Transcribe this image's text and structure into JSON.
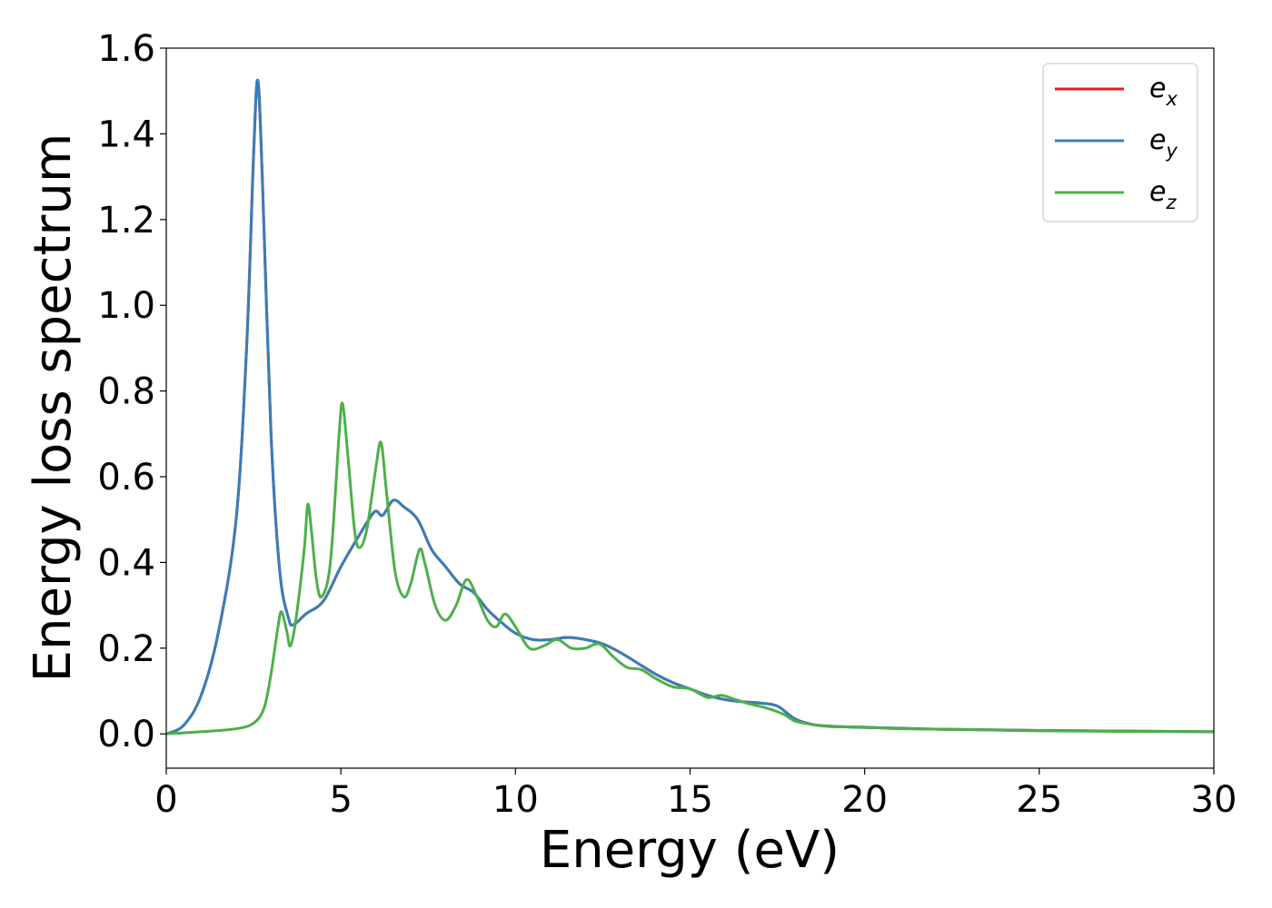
{
  "chart_data": {
    "type": "line",
    "title": "",
    "xlabel": "Energy (eV)",
    "ylabel": "Energy loss spectrum",
    "xlim": [
      0,
      30
    ],
    "ylim": [
      -0.08,
      1.6
    ],
    "x_ticks": [
      0,
      5,
      10,
      15,
      20,
      25,
      30
    ],
    "y_ticks": [
      0.0,
      0.2,
      0.4,
      0.6,
      0.8,
      1.0,
      1.2,
      1.4,
      1.6
    ],
    "x_tick_labels": [
      "0",
      "5",
      "10",
      "15",
      "20",
      "25",
      "30"
    ],
    "y_tick_labels": [
      "0.0",
      "0.2",
      "0.4",
      "0.6",
      "0.8",
      "1.0",
      "1.2",
      "1.4",
      "1.6"
    ],
    "grid": false,
    "legend_position": "top-right",
    "series": [
      {
        "name": "e_x",
        "legend_base": "e",
        "legend_sub": "x",
        "color": "#e41a1c",
        "points": [
          [
            0,
            0.0
          ],
          [
            0.5,
            0.02
          ],
          [
            1.0,
            0.09
          ],
          [
            1.5,
            0.24
          ],
          [
            2.0,
            0.5
          ],
          [
            2.3,
            0.9
          ],
          [
            2.5,
            1.35
          ],
          [
            2.62,
            1.525
          ],
          [
            2.75,
            1.3
          ],
          [
            3.0,
            0.7
          ],
          [
            3.25,
            0.38
          ],
          [
            3.5,
            0.27
          ],
          [
            3.65,
            0.255
          ],
          [
            4.0,
            0.28
          ],
          [
            4.5,
            0.31
          ],
          [
            5.0,
            0.39
          ],
          [
            5.5,
            0.46
          ],
          [
            5.8,
            0.5
          ],
          [
            6.0,
            0.52
          ],
          [
            6.2,
            0.51
          ],
          [
            6.5,
            0.545
          ],
          [
            6.8,
            0.53
          ],
          [
            7.2,
            0.5
          ],
          [
            7.6,
            0.43
          ],
          [
            8.0,
            0.39
          ],
          [
            8.4,
            0.35
          ],
          [
            8.8,
            0.33
          ],
          [
            9.2,
            0.29
          ],
          [
            9.6,
            0.26
          ],
          [
            10.0,
            0.235
          ],
          [
            10.5,
            0.22
          ],
          [
            11.0,
            0.22
          ],
          [
            11.5,
            0.225
          ],
          [
            12.0,
            0.22
          ],
          [
            12.5,
            0.21
          ],
          [
            13.0,
            0.19
          ],
          [
            13.5,
            0.165
          ],
          [
            14.0,
            0.14
          ],
          [
            14.5,
            0.12
          ],
          [
            15.0,
            0.105
          ],
          [
            15.5,
            0.09
          ],
          [
            16.0,
            0.08
          ],
          [
            16.5,
            0.075
          ],
          [
            17.0,
            0.072
          ],
          [
            17.5,
            0.065
          ],
          [
            18.0,
            0.035
          ],
          [
            18.5,
            0.022
          ],
          [
            19.0,
            0.018
          ],
          [
            20.0,
            0.015
          ],
          [
            22.0,
            0.011
          ],
          [
            25.0,
            0.008
          ],
          [
            30.0,
            0.005
          ]
        ]
      },
      {
        "name": "e_y",
        "legend_base": "e",
        "legend_sub": "y",
        "color": "#377eb8",
        "points": [
          [
            0,
            0.0
          ],
          [
            0.5,
            0.02
          ],
          [
            1.0,
            0.09
          ],
          [
            1.5,
            0.24
          ],
          [
            2.0,
            0.5
          ],
          [
            2.3,
            0.9
          ],
          [
            2.5,
            1.35
          ],
          [
            2.62,
            1.525
          ],
          [
            2.75,
            1.3
          ],
          [
            3.0,
            0.7
          ],
          [
            3.25,
            0.38
          ],
          [
            3.5,
            0.27
          ],
          [
            3.65,
            0.255
          ],
          [
            4.0,
            0.28
          ],
          [
            4.5,
            0.31
          ],
          [
            5.0,
            0.39
          ],
          [
            5.5,
            0.46
          ],
          [
            5.8,
            0.5
          ],
          [
            6.0,
            0.52
          ],
          [
            6.2,
            0.51
          ],
          [
            6.5,
            0.545
          ],
          [
            6.8,
            0.53
          ],
          [
            7.2,
            0.5
          ],
          [
            7.6,
            0.43
          ],
          [
            8.0,
            0.39
          ],
          [
            8.4,
            0.35
          ],
          [
            8.8,
            0.33
          ],
          [
            9.2,
            0.29
          ],
          [
            9.6,
            0.26
          ],
          [
            10.0,
            0.235
          ],
          [
            10.5,
            0.22
          ],
          [
            11.0,
            0.22
          ],
          [
            11.5,
            0.225
          ],
          [
            12.0,
            0.22
          ],
          [
            12.5,
            0.21
          ],
          [
            13.0,
            0.19
          ],
          [
            13.5,
            0.165
          ],
          [
            14.0,
            0.14
          ],
          [
            14.5,
            0.12
          ],
          [
            15.0,
            0.105
          ],
          [
            15.5,
            0.09
          ],
          [
            16.0,
            0.08
          ],
          [
            16.5,
            0.075
          ],
          [
            17.0,
            0.072
          ],
          [
            17.5,
            0.065
          ],
          [
            18.0,
            0.035
          ],
          [
            18.5,
            0.022
          ],
          [
            19.0,
            0.018
          ],
          [
            20.0,
            0.015
          ],
          [
            22.0,
            0.011
          ],
          [
            25.0,
            0.008
          ],
          [
            30.0,
            0.005
          ]
        ]
      },
      {
        "name": "e_z",
        "legend_base": "e",
        "legend_sub": "z",
        "color": "#4daf4a",
        "points": [
          [
            0,
            0.0
          ],
          [
            1.0,
            0.005
          ],
          [
            2.0,
            0.012
          ],
          [
            2.5,
            0.025
          ],
          [
            2.8,
            0.06
          ],
          [
            3.0,
            0.14
          ],
          [
            3.2,
            0.25
          ],
          [
            3.3,
            0.285
          ],
          [
            3.45,
            0.24
          ],
          [
            3.55,
            0.205
          ],
          [
            3.7,
            0.26
          ],
          [
            3.95,
            0.43
          ],
          [
            4.05,
            0.535
          ],
          [
            4.15,
            0.48
          ],
          [
            4.3,
            0.36
          ],
          [
            4.45,
            0.32
          ],
          [
            4.7,
            0.4
          ],
          [
            4.95,
            0.7
          ],
          [
            5.05,
            0.77
          ],
          [
            5.2,
            0.65
          ],
          [
            5.4,
            0.47
          ],
          [
            5.55,
            0.435
          ],
          [
            5.75,
            0.48
          ],
          [
            6.0,
            0.62
          ],
          [
            6.15,
            0.68
          ],
          [
            6.3,
            0.57
          ],
          [
            6.55,
            0.38
          ],
          [
            6.8,
            0.32
          ],
          [
            7.0,
            0.35
          ],
          [
            7.25,
            0.43
          ],
          [
            7.4,
            0.4
          ],
          [
            7.7,
            0.3
          ],
          [
            8.0,
            0.265
          ],
          [
            8.3,
            0.3
          ],
          [
            8.6,
            0.36
          ],
          [
            8.9,
            0.32
          ],
          [
            9.2,
            0.265
          ],
          [
            9.45,
            0.25
          ],
          [
            9.7,
            0.28
          ],
          [
            10.0,
            0.25
          ],
          [
            10.4,
            0.2
          ],
          [
            10.8,
            0.205
          ],
          [
            11.2,
            0.22
          ],
          [
            11.6,
            0.2
          ],
          [
            12.0,
            0.2
          ],
          [
            12.4,
            0.21
          ],
          [
            12.8,
            0.18
          ],
          [
            13.2,
            0.155
          ],
          [
            13.6,
            0.15
          ],
          [
            14.0,
            0.13
          ],
          [
            14.5,
            0.11
          ],
          [
            15.0,
            0.105
          ],
          [
            15.5,
            0.085
          ],
          [
            15.9,
            0.09
          ],
          [
            16.3,
            0.08
          ],
          [
            16.7,
            0.07
          ],
          [
            17.2,
            0.06
          ],
          [
            17.7,
            0.045
          ],
          [
            18.0,
            0.03
          ],
          [
            18.5,
            0.022
          ],
          [
            19.0,
            0.017
          ],
          [
            20.0,
            0.016
          ],
          [
            21.0,
            0.012
          ],
          [
            23.0,
            0.01
          ],
          [
            25.0,
            0.007
          ],
          [
            30.0,
            0.005
          ]
        ]
      }
    ]
  }
}
